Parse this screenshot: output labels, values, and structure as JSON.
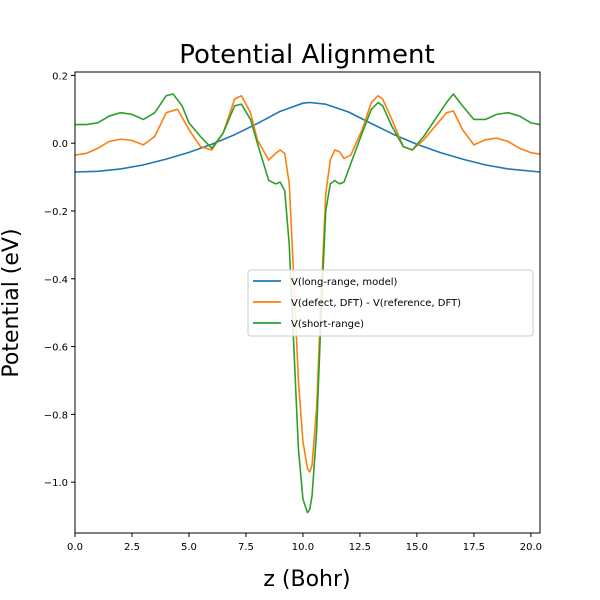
{
  "chart_data": {
    "type": "line",
    "title": "Potential Alignment",
    "xlabel": "z (Bohr)",
    "ylabel": "Potential (eV)",
    "xlim": [
      0,
      20.4
    ],
    "ylim": [
      -1.15,
      0.21
    ],
    "x_ticks": [
      0.0,
      2.5,
      5.0,
      7.5,
      10.0,
      12.5,
      15.0,
      17.5,
      20.0
    ],
    "x_tick_labels": [
      "0.0",
      "2.5",
      "5.0",
      "7.5",
      "10.0",
      "12.5",
      "15.0",
      "17.5",
      "20.0"
    ],
    "y_ticks": [
      0.2,
      0.0,
      -0.2,
      -0.4,
      -0.6,
      -0.8,
      -1.0
    ],
    "y_tick_labels": [
      "0.2",
      "0.0",
      "−0.2",
      "−0.4",
      "−0.6",
      "−0.8",
      "−1.0"
    ],
    "legend_position": "center-right",
    "series": [
      {
        "name": "V(long-range, model)",
        "color": "#1f77b4",
        "x": [
          0.0,
          1.0,
          2.0,
          3.0,
          4.0,
          5.0,
          6.0,
          7.0,
          8.0,
          9.0,
          10.0,
          10.3,
          11.0,
          12.0,
          13.0,
          14.0,
          15.0,
          16.0,
          17.0,
          18.0,
          19.0,
          20.4
        ],
        "y": [
          -0.085,
          -0.083,
          -0.076,
          -0.064,
          -0.047,
          -0.027,
          -0.003,
          0.025,
          0.058,
          0.094,
          0.118,
          0.12,
          0.115,
          0.092,
          0.058,
          0.025,
          -0.003,
          -0.027,
          -0.047,
          -0.064,
          -0.076,
          -0.085
        ]
      },
      {
        "name": "V(defect, DFT) - V(reference, DFT)",
        "color": "#ff7f0e",
        "x": [
          0.0,
          0.5,
          1.0,
          1.5,
          2.0,
          2.5,
          3.0,
          3.5,
          4.0,
          4.5,
          5.0,
          5.5,
          6.0,
          6.5,
          7.0,
          7.3,
          7.7,
          8.0,
          8.5,
          8.8,
          9.0,
          9.2,
          9.4,
          9.6,
          9.8,
          10.0,
          10.2,
          10.3,
          10.4,
          10.6,
          10.8,
          11.0,
          11.2,
          11.4,
          11.6,
          11.8,
          12.1,
          12.6,
          13.0,
          13.3,
          13.5,
          13.9,
          14.4,
          14.8,
          15.3,
          15.8,
          16.3,
          16.6,
          17.0,
          17.5,
          18.0,
          18.5,
          19.0,
          19.5,
          20.0,
          20.4
        ],
        "y": [
          -0.035,
          -0.03,
          -0.015,
          0.005,
          0.012,
          0.008,
          -0.005,
          0.02,
          0.09,
          0.1,
          0.04,
          -0.01,
          -0.02,
          0.03,
          0.13,
          0.14,
          0.09,
          0.01,
          -0.05,
          -0.03,
          -0.02,
          -0.03,
          -0.12,
          -0.4,
          -0.7,
          -0.88,
          -0.96,
          -0.97,
          -0.95,
          -0.78,
          -0.45,
          -0.15,
          -0.05,
          -0.02,
          -0.025,
          -0.045,
          -0.035,
          0.04,
          0.12,
          0.14,
          0.13,
          0.07,
          -0.01,
          -0.02,
          0.01,
          0.05,
          0.09,
          0.095,
          0.04,
          -0.005,
          0.01,
          0.015,
          0.005,
          -0.015,
          -0.028,
          -0.032
        ]
      },
      {
        "name": "V(short-range)",
        "color": "#2ca02c",
        "x": [
          0.0,
          0.5,
          1.0,
          1.5,
          2.0,
          2.5,
          3.0,
          3.5,
          4.0,
          4.3,
          4.7,
          5.0,
          5.5,
          6.0,
          6.5,
          7.0,
          7.3,
          7.7,
          8.0,
          8.5,
          8.8,
          9.0,
          9.2,
          9.4,
          9.6,
          9.8,
          10.0,
          10.2,
          10.3,
          10.4,
          10.6,
          10.8,
          11.0,
          11.2,
          11.4,
          11.6,
          11.8,
          12.1,
          12.6,
          13.0,
          13.3,
          13.5,
          13.9,
          14.4,
          14.8,
          15.3,
          15.8,
          16.3,
          16.6,
          17.0,
          17.5,
          18.0,
          18.5,
          19.0,
          19.5,
          20.0,
          20.4
        ],
        "y": [
          0.055,
          0.055,
          0.06,
          0.08,
          0.09,
          0.085,
          0.07,
          0.09,
          0.14,
          0.145,
          0.11,
          0.06,
          0.02,
          -0.015,
          0.03,
          0.11,
          0.115,
          0.07,
          0.0,
          -0.11,
          -0.12,
          -0.115,
          -0.14,
          -0.3,
          -0.6,
          -0.9,
          -1.05,
          -1.09,
          -1.08,
          -1.04,
          -0.85,
          -0.5,
          -0.2,
          -0.12,
          -0.11,
          -0.12,
          -0.115,
          -0.06,
          0.03,
          0.1,
          0.12,
          0.11,
          0.05,
          -0.01,
          -0.02,
          0.02,
          0.07,
          0.12,
          0.145,
          0.11,
          0.07,
          0.07,
          0.085,
          0.09,
          0.08,
          0.06,
          0.055
        ]
      }
    ]
  }
}
